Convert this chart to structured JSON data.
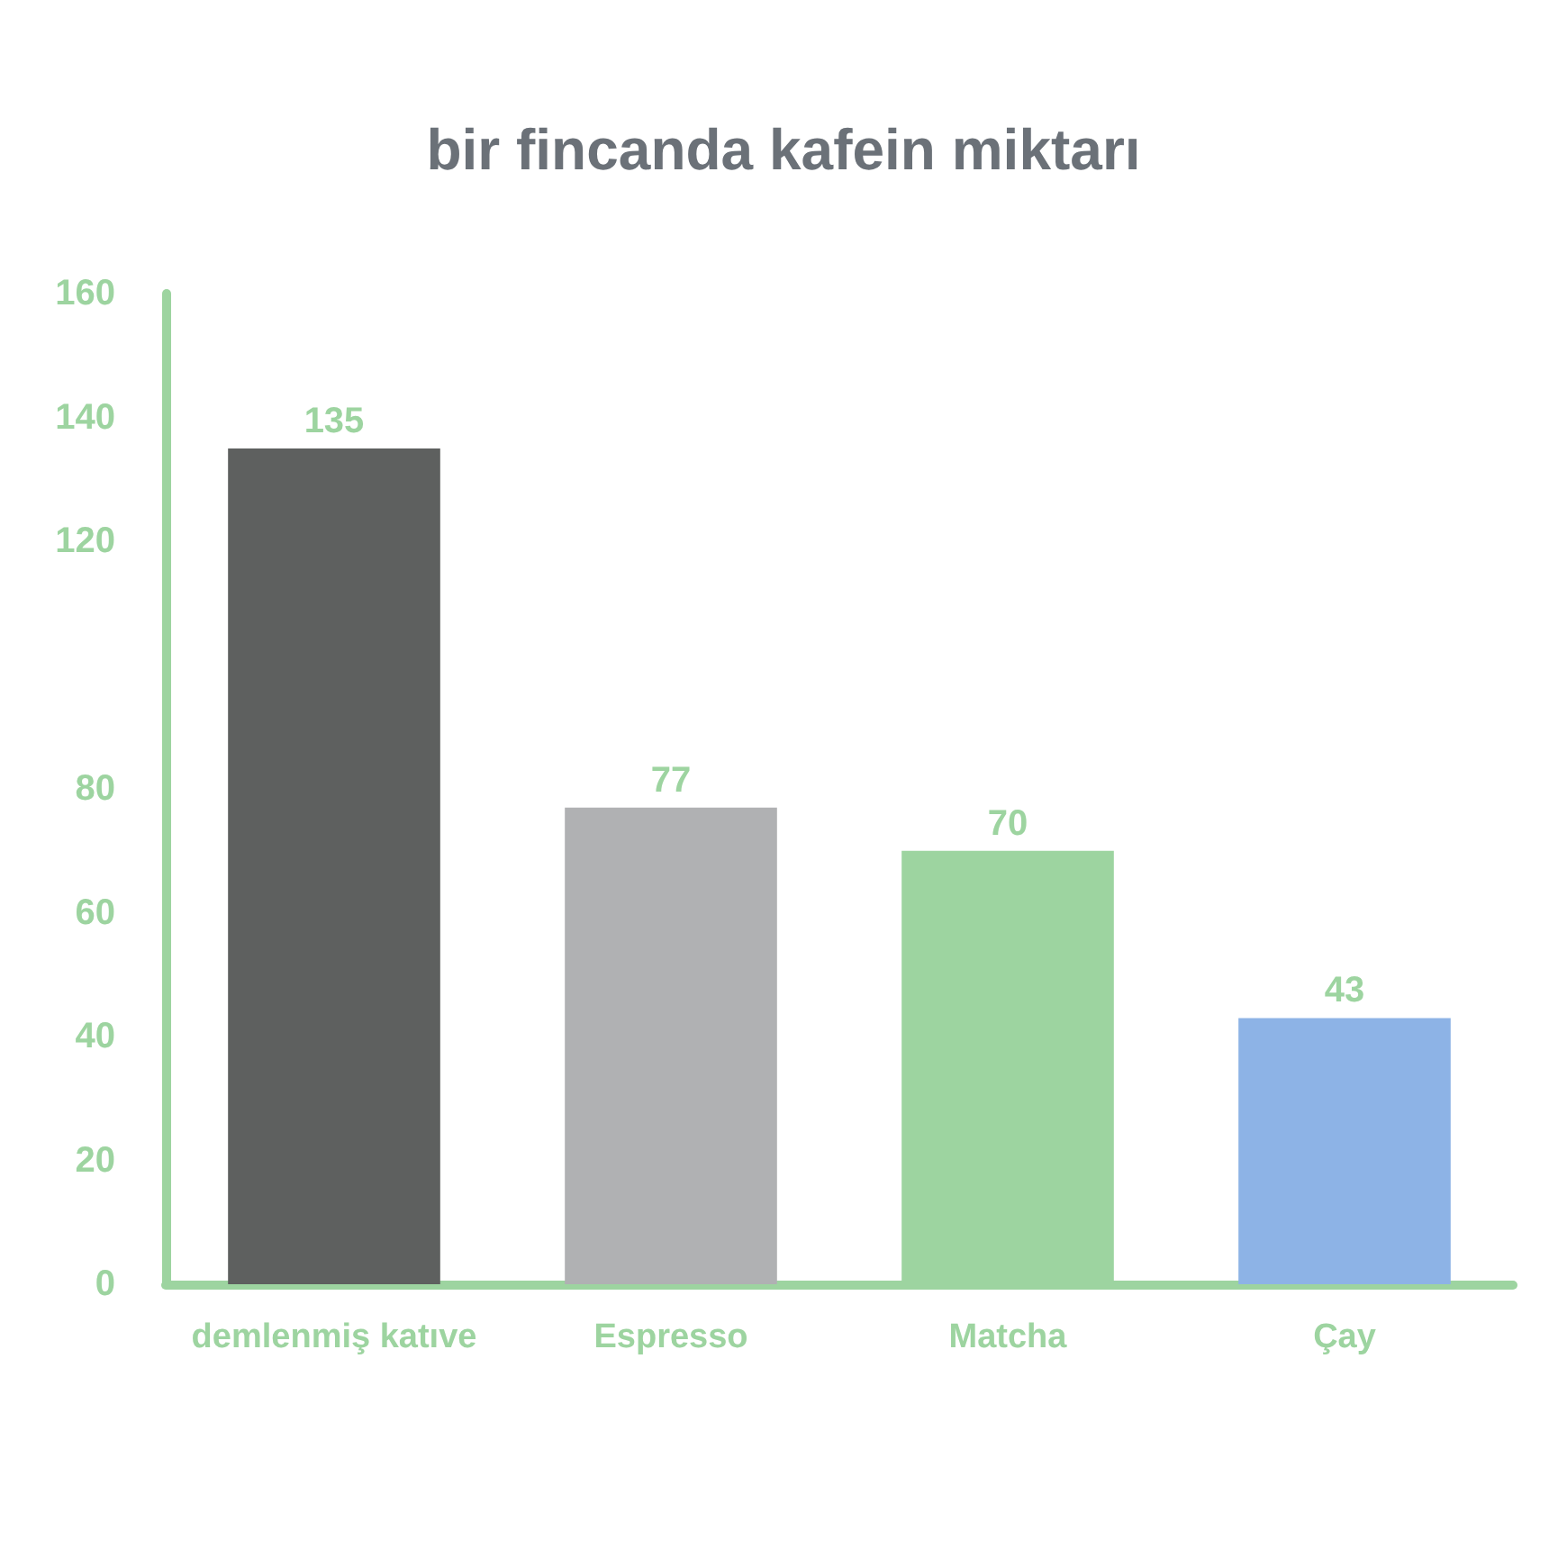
{
  "chart_data": {
    "type": "bar",
    "title": "bir fincanda kafein miktarı",
    "categories": [
      "demlenmiş katıve",
      "Espresso",
      "Matcha",
      "Çay"
    ],
    "values": [
      135,
      77,
      70,
      43
    ],
    "colors": [
      "#5e605f",
      "#b0b1b3",
      "#9dd4a0",
      "#8db3e6"
    ],
    "ylim": [
      0,
      160
    ],
    "yticks": [
      0,
      20,
      40,
      60,
      80,
      120,
      140,
      160
    ],
    "grid": false,
    "data_labels": true
  }
}
